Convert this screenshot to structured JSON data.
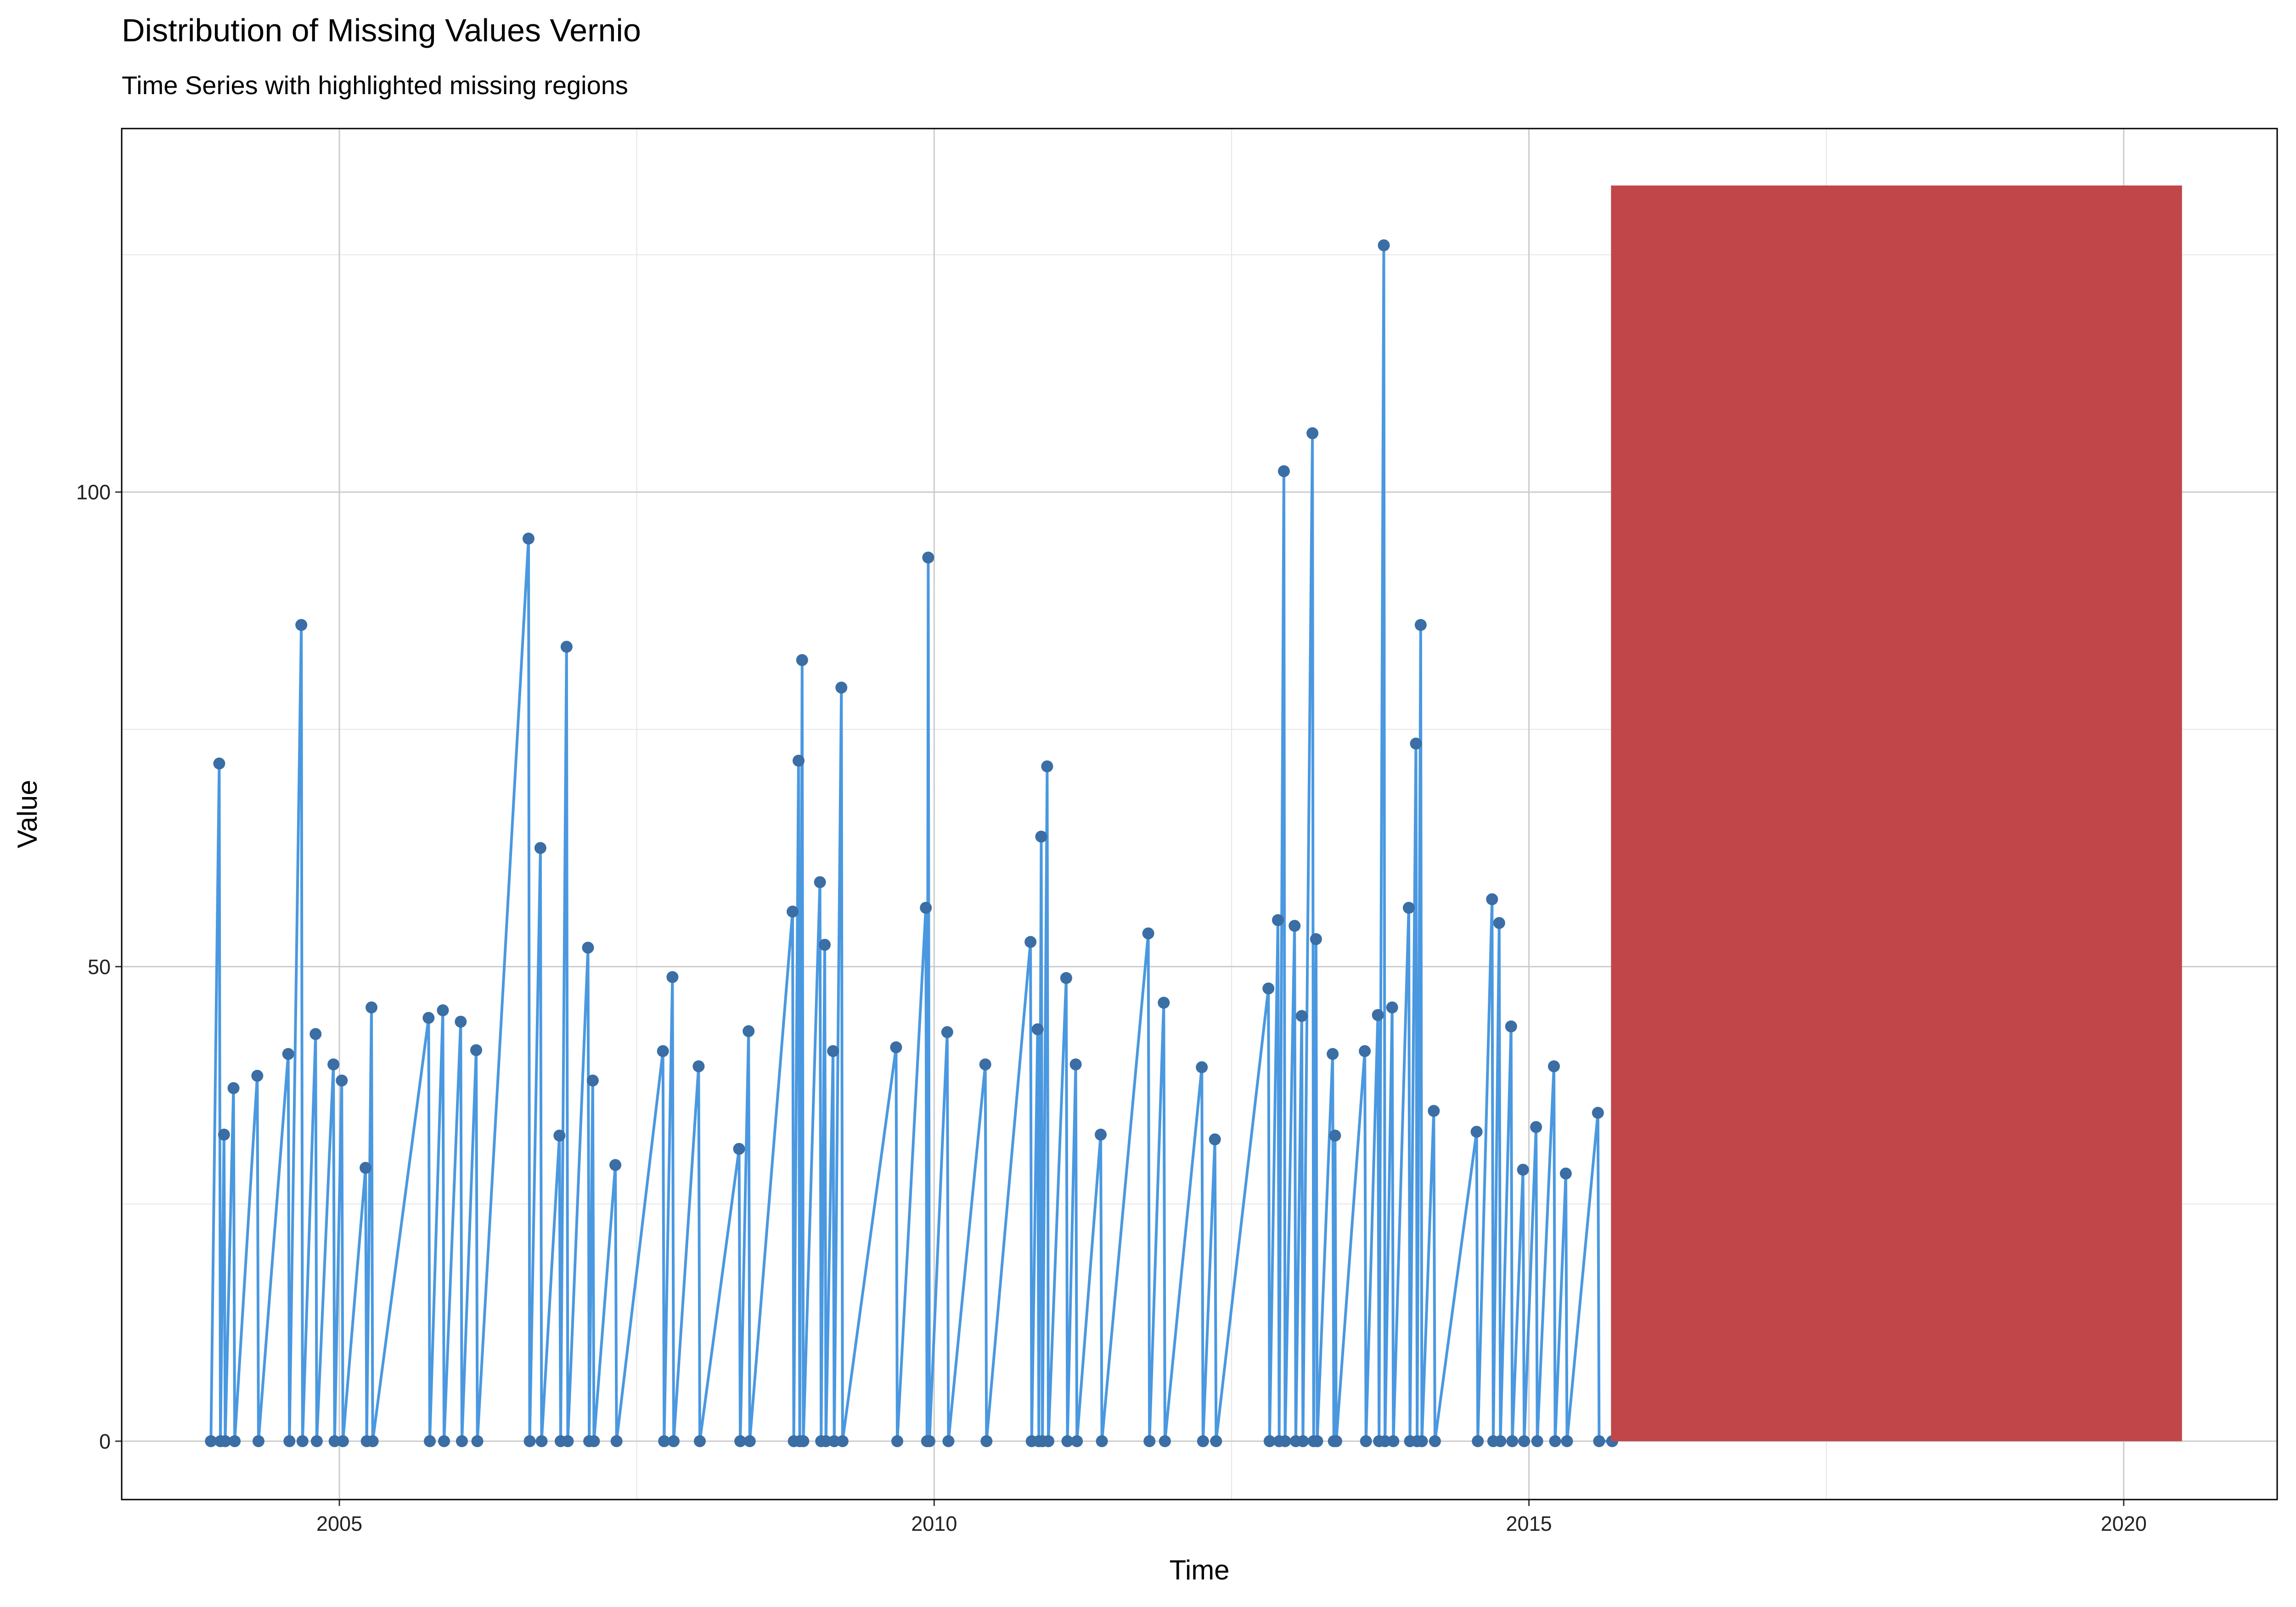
{
  "chart_data": {
    "type": "line",
    "title": "Distribution of Missing Values Vernio",
    "subtitle": "Time Series with highlighted missing regions",
    "xlabel": "Time",
    "ylabel": "Value",
    "x": [
      2003.92,
      2003.99,
      2004.0,
      2004.03,
      2004.04,
      2004.11,
      2004.12,
      2004.31,
      2004.32,
      2004.57,
      2004.58,
      2004.68,
      2004.69,
      2004.8,
      2004.81,
      2004.95,
      2004.96,
      2005.02,
      2005.03,
      2005.22,
      2005.23,
      2005.27,
      2005.28,
      2005.75,
      2005.76,
      2005.87,
      2005.88,
      2006.02,
      2006.03,
      2006.15,
      2006.16,
      2006.59,
      2006.6,
      2006.69,
      2006.7,
      2006.85,
      2006.86,
      2006.91,
      2006.92,
      2007.09,
      2007.1,
      2007.13,
      2007.14,
      2007.32,
      2007.33,
      2007.72,
      2007.73,
      2007.8,
      2007.81,
      2008.02,
      2008.03,
      2008.36,
      2008.37,
      2008.44,
      2008.45,
      2008.81,
      2008.82,
      2008.86,
      2008.87,
      2008.89,
      2008.9,
      2009.04,
      2009.05,
      2009.08,
      2009.09,
      2009.15,
      2009.16,
      2009.22,
      2009.23,
      2009.68,
      2009.69,
      2009.93,
      2009.94,
      2009.95,
      2009.96,
      2010.11,
      2010.12,
      2010.43,
      2010.44,
      2010.81,
      2010.82,
      2010.87,
      2010.88,
      2010.9,
      2010.91,
      2010.95,
      2010.96,
      2011.11,
      2011.12,
      2011.19,
      2011.2,
      2011.4,
      2011.41,
      2011.8,
      2011.81,
      2011.93,
      2011.94,
      2012.25,
      2012.26,
      2012.36,
      2012.37,
      2012.81,
      2012.82,
      2012.89,
      2012.9,
      2012.94,
      2012.95,
      2013.03,
      2013.04,
      2013.09,
      2013.1,
      2013.18,
      2013.19,
      2013.21,
      2013.22,
      2013.35,
      2013.36,
      2013.37,
      2013.38,
      2013.62,
      2013.63,
      2013.73,
      2013.74,
      2013.78,
      2013.79,
      2013.85,
      2013.86,
      2013.99,
      2014.0,
      2014.05,
      2014.06,
      2014.09,
      2014.1,
      2014.2,
      2014.21,
      2014.56,
      2014.57,
      2014.69,
      2014.7,
      2014.75,
      2014.76,
      2014.85,
      2014.86,
      2014.95,
      2014.96,
      2015.06,
      2015.07,
      2015.21,
      2015.22,
      2015.31,
      2015.32,
      2015.58,
      2015.59,
      2015.7
    ],
    "values": [
      0,
      71.4,
      0,
      32.3,
      0,
      37.2,
      0,
      38.5,
      0,
      40.8,
      0,
      86.0,
      0,
      42.9,
      0,
      39.7,
      0,
      38.0,
      0,
      28.8,
      0,
      45.7,
      0,
      44.6,
      0,
      45.4,
      0,
      44.2,
      0,
      41.2,
      0,
      95.1,
      0,
      62.5,
      0,
      32.2,
      0,
      83.7,
      0,
      52.0,
      0,
      38.0,
      0,
      29.1,
      0,
      41.1,
      0,
      48.9,
      0,
      39.5,
      0,
      30.8,
      0,
      43.2,
      0,
      55.8,
      0,
      71.7,
      0,
      82.3,
      0,
      58.9,
      0,
      52.3,
      0,
      41.1,
      0,
      79.4,
      0,
      41.5,
      0,
      56.2,
      0,
      93.1,
      0,
      43.1,
      0,
      39.7,
      0,
      52.6,
      0,
      43.4,
      0,
      63.7,
      0,
      71.1,
      0,
      48.8,
      0,
      39.7,
      0,
      32.3,
      0,
      53.5,
      0,
      46.2,
      0,
      39.4,
      0,
      31.8,
      0,
      47.7,
      0,
      54.9,
      0,
      102.2,
      0,
      54.3,
      0,
      44.8,
      0,
      106.2,
      0,
      52.9,
      0,
      40.8,
      0,
      32.2,
      0,
      41.1,
      0,
      44.9,
      0,
      126.0,
      0,
      45.7,
      0,
      56.2,
      0,
      73.5,
      0,
      86.0,
      0,
      34.8,
      0,
      32.6,
      0,
      57.1,
      0,
      54.6,
      0,
      43.7,
      0,
      28.6,
      0,
      33.1,
      0,
      39.5,
      0,
      28.2,
      0,
      34.6,
      0,
      0
    ],
    "color": "#4a98e0",
    "point_color": "#3a6ea5",
    "missing_regions": [
      {
        "xmin": 2015.69,
        "xmax": 2020.49,
        "ymin": 0,
        "ymax": 132.3,
        "color": "#c0464a"
      }
    ],
    "xlim": [
      2003.17,
      2021.29
    ],
    "ylim": [
      -6.15,
      138.3
    ],
    "xticks": [
      2005,
      2010,
      2015,
      2020
    ],
    "yticks": [
      0,
      50,
      100
    ],
    "xminor": [
      2007.5,
      2012.5,
      2017.5
    ],
    "yminor": [
      25,
      75,
      125
    ],
    "grid": true
  }
}
